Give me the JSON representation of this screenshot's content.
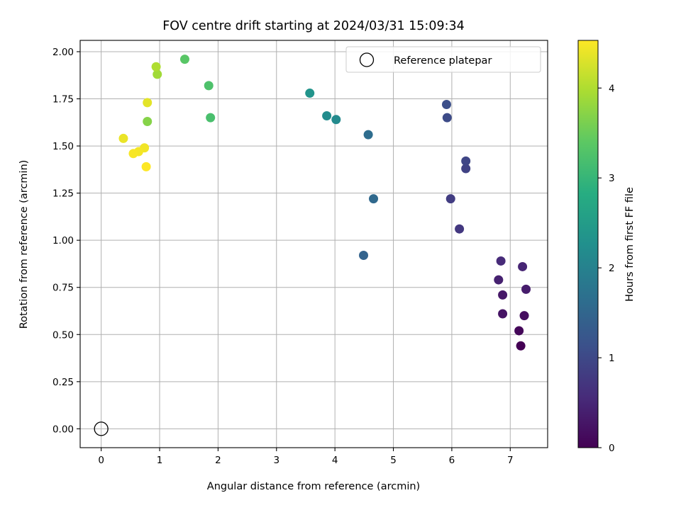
{
  "chart_data": {
    "type": "scatter",
    "title": "FOV centre drift starting at 2024/03/31 15:09:34",
    "xlabel": "Angular distance from reference (arcmin)",
    "ylabel": "Rotation from reference (arcmin)",
    "xlim": [
      -0.36,
      7.64
    ],
    "ylim": [
      -0.1,
      2.06
    ],
    "xticks": [
      "0",
      "1",
      "2",
      "3",
      "4",
      "5",
      "6",
      "7"
    ],
    "yticks": [
      "0.00",
      "0.25",
      "0.50",
      "0.75",
      "1.00",
      "1.25",
      "1.50",
      "1.75",
      "2.00"
    ],
    "grid": true,
    "legend": {
      "position": "upper right",
      "entries": [
        "Reference platepar"
      ]
    },
    "reference_point": {
      "name": "Reference platepar",
      "x": 0,
      "y": 0,
      "marker": "open-circle"
    },
    "colorbar": {
      "label": "Hours from first FF file",
      "colormap": "viridis",
      "range": [
        0,
        4.53
      ],
      "ticks": [
        "0",
        "1",
        "2",
        "3",
        "4"
      ]
    },
    "points": [
      {
        "x": 7.18,
        "y": 0.44,
        "c": 0.0
      },
      {
        "x": 7.15,
        "y": 0.52,
        "c": 0.08
      },
      {
        "x": 7.24,
        "y": 0.6,
        "c": 0.16
      },
      {
        "x": 6.87,
        "y": 0.61,
        "c": 0.24
      },
      {
        "x": 6.87,
        "y": 0.71,
        "c": 0.3
      },
      {
        "x": 7.27,
        "y": 0.74,
        "c": 0.36
      },
      {
        "x": 6.8,
        "y": 0.79,
        "c": 0.42
      },
      {
        "x": 7.21,
        "y": 0.86,
        "c": 0.48
      },
      {
        "x": 6.84,
        "y": 0.89,
        "c": 0.55
      },
      {
        "x": 6.13,
        "y": 1.06,
        "c": 0.75
      },
      {
        "x": 5.98,
        "y": 1.22,
        "c": 0.82
      },
      {
        "x": 6.24,
        "y": 1.38,
        "c": 0.9
      },
      {
        "x": 6.24,
        "y": 1.42,
        "c": 0.96
      },
      {
        "x": 5.92,
        "y": 1.65,
        "c": 1.04
      },
      {
        "x": 5.91,
        "y": 1.72,
        "c": 1.1
      },
      {
        "x": 4.49,
        "y": 0.92,
        "c": 1.45
      },
      {
        "x": 4.66,
        "y": 1.22,
        "c": 1.55
      },
      {
        "x": 4.57,
        "y": 1.56,
        "c": 1.62
      },
      {
        "x": 4.02,
        "y": 1.64,
        "c": 2.15
      },
      {
        "x": 3.86,
        "y": 1.66,
        "c": 2.2
      },
      {
        "x": 3.57,
        "y": 1.78,
        "c": 2.35
      },
      {
        "x": 1.87,
        "y": 1.65,
        "c": 3.2
      },
      {
        "x": 1.84,
        "y": 1.82,
        "c": 3.25
      },
      {
        "x": 1.43,
        "y": 1.96,
        "c": 3.35
      },
      {
        "x": 0.79,
        "y": 1.63,
        "c": 3.7
      },
      {
        "x": 0.96,
        "y": 1.88,
        "c": 3.9
      },
      {
        "x": 0.94,
        "y": 1.92,
        "c": 4.0
      },
      {
        "x": 0.79,
        "y": 1.73,
        "c": 4.35
      },
      {
        "x": 0.38,
        "y": 1.54,
        "c": 4.4
      },
      {
        "x": 0.74,
        "y": 1.49,
        "c": 4.45
      },
      {
        "x": 0.64,
        "y": 1.47,
        "c": 4.47
      },
      {
        "x": 0.55,
        "y": 1.46,
        "c": 4.49
      },
      {
        "x": 0.77,
        "y": 1.39,
        "c": 4.53
      }
    ]
  }
}
